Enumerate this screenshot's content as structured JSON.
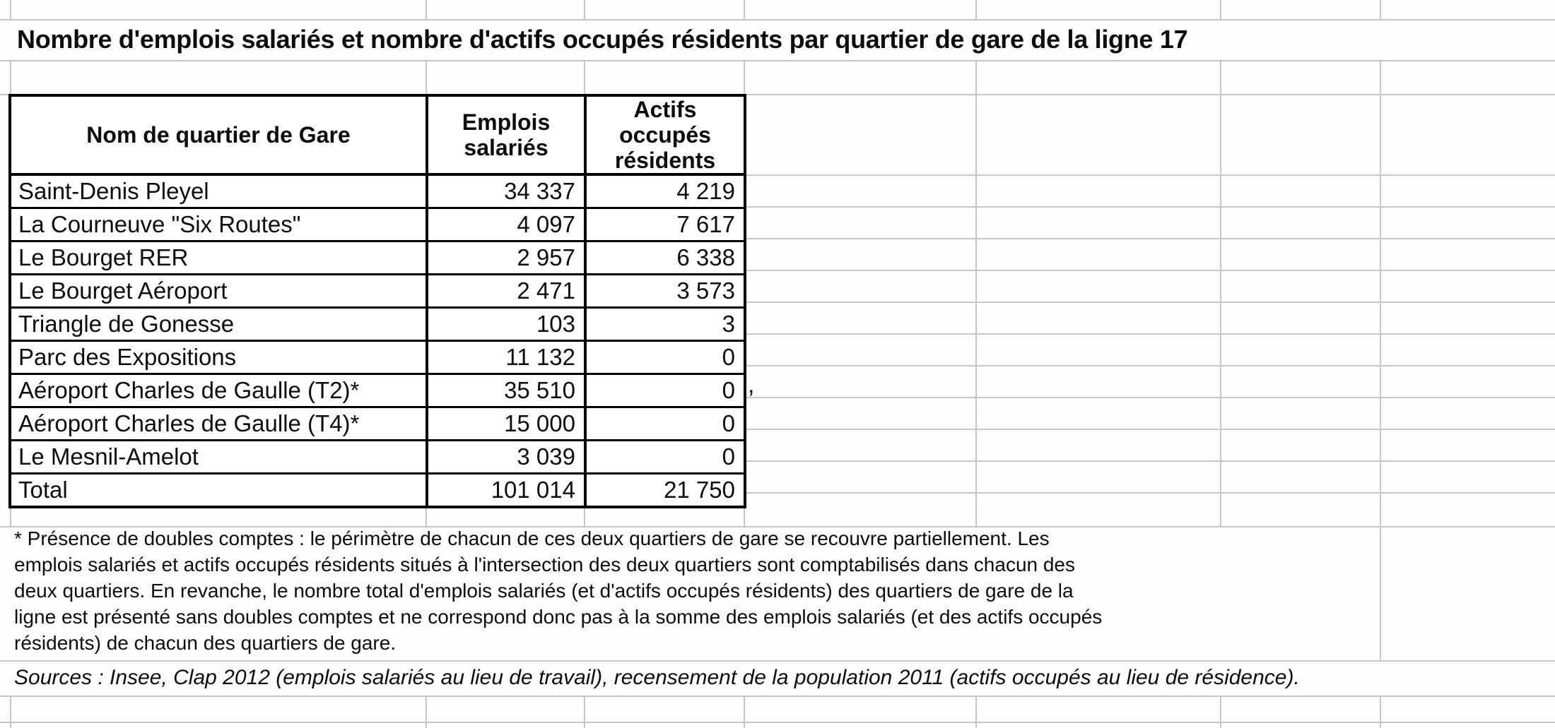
{
  "title": "Nombre d'emplois salariés et nombre d'actifs occupés résidents par quartier de gare de la ligne 17",
  "table": {
    "columns": [
      "Nom de quartier de Gare",
      "Emplois salariés",
      "Actifs occupés résidents"
    ],
    "rows": [
      {
        "name": "Saint-Denis Pleyel",
        "emplois": "34 337",
        "actifs": "4 219"
      },
      {
        "name": "La Courneuve \"Six Routes\"",
        "emplois": "4 097",
        "actifs": "7 617"
      },
      {
        "name": "Le Bourget RER",
        "emplois": "2 957",
        "actifs": "6 338"
      },
      {
        "name": "Le Bourget Aéroport",
        "emplois": "2 471",
        "actifs": "3 573"
      },
      {
        "name": "Triangle de Gonesse",
        "emplois": "103",
        "actifs": "3"
      },
      {
        "name": "Parc des Expositions",
        "emplois": "11 132",
        "actifs": "0"
      },
      {
        "name": "Aéroport Charles de Gaulle (T2)*",
        "emplois": "35 510",
        "actifs": "0"
      },
      {
        "name": "Aéroport Charles de Gaulle (T4)*",
        "emplois": "15 000",
        "actifs": "0"
      },
      {
        "name": "Le Mesnil-Amelot",
        "emplois": "3 039",
        "actifs": "0"
      },
      {
        "name": "Total",
        "emplois": "101 014",
        "actifs": "21 750"
      }
    ]
  },
  "stray_comma": ",",
  "footnote_lines": [
    "* Présence de doubles comptes : le périmètre de chacun de ces deux quartiers de gare se recouvre partiellement. Les",
    "emplois salariés et actifs occupés résidents situés à l'intersection des deux quartiers sont comptabilisés dans chacun des",
    "deux quartiers. En revanche, le nombre total d'emplois salariés (et d'actifs occupés résidents) des quartiers de gare de la",
    "ligne est présenté sans doubles comptes et ne correspond donc pas à la somme des emplois salariés (et des actifs occupés",
    "résidents) de chacun des quartiers de gare."
  ],
  "sources": "Sources : Insee, Clap 2012 (emplois salariés au lieu de travail), recensement de la population 2011 (actifs occupés au lieu de résidence).",
  "colors": {
    "gridline": "#c5c7c9",
    "table_border": "#000000",
    "text": "#0d0d0d",
    "background": "#fdfdfd"
  }
}
